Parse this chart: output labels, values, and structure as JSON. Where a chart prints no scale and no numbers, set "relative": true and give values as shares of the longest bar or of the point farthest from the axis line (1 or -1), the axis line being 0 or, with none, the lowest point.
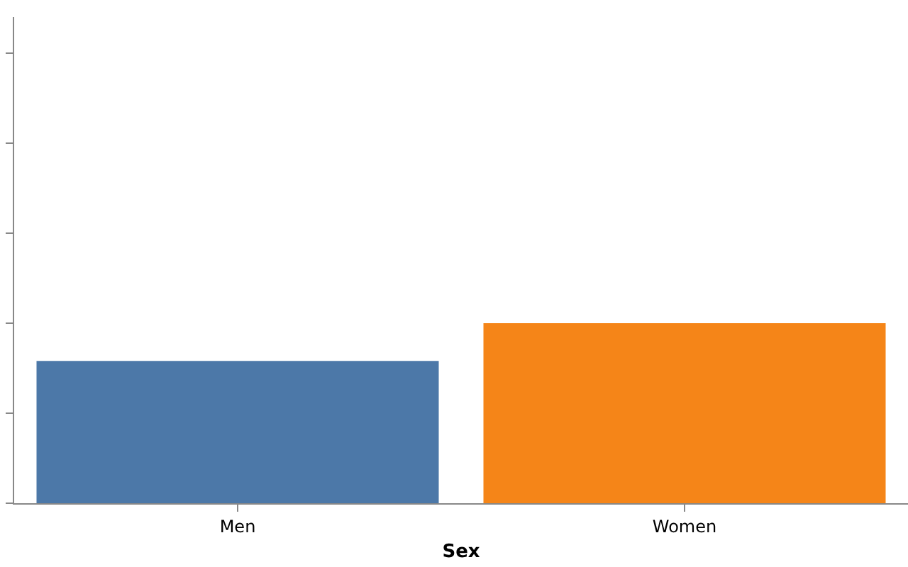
{
  "chart_data": {
    "type": "bar",
    "xlabel": "Sex",
    "categories": [
      "Men",
      "Women"
    ],
    "values": [
      0.79,
      1
    ],
    "colors": [
      "#4c78a8",
      "#f58518"
    ],
    "relative": true
  }
}
